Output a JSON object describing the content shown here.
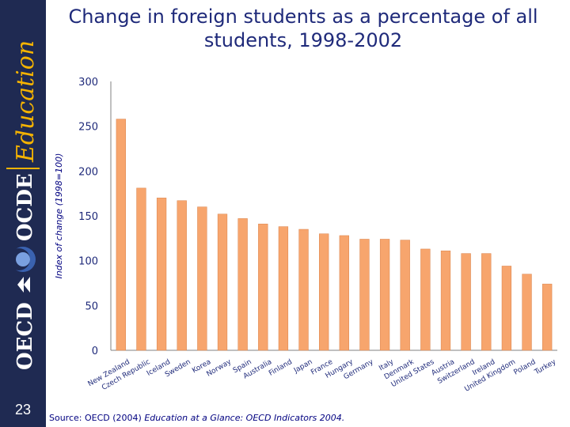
{
  "sidebar": {
    "brand_lines": [
      "OECD",
      "OCDE"
    ],
    "brand_word": "Education",
    "page_number": "23",
    "colors": {
      "background": "#1f2a52",
      "accent": "#f5b301",
      "logo_blue": "#3a62b0"
    }
  },
  "footer": {
    "source_prefix": "Source: OECD (2004)",
    "source_publication": "Education at a Glance: OECD Indicators 2004."
  },
  "chart_data": {
    "type": "bar",
    "title": "Change in foreign students as a percentage of all students, 1998-2002",
    "xlabel": "",
    "ylabel": "Index of change (1998=100)",
    "ylim": [
      0,
      300
    ],
    "yticks": [
      0,
      50,
      100,
      150,
      200,
      250,
      300
    ],
    "grid": false,
    "legend": "none",
    "bar_color": "#f7a56d",
    "categories": [
      "New Zealand",
      "Czech Republic",
      "Iceland",
      "Sweden",
      "Korea",
      "Norway",
      "Spain",
      "Australia",
      "Finland",
      "Japan",
      "France",
      "Hungary",
      "Germany",
      "Italy",
      "Denmark",
      "United States",
      "Austria",
      "Switzerland",
      "Ireland",
      "United Kingdom",
      "Poland",
      "Turkey"
    ],
    "values": [
      258,
      181,
      170,
      167,
      160,
      152,
      147,
      141,
      138,
      135,
      130,
      128,
      124,
      124,
      123,
      113,
      111,
      108,
      108,
      94,
      85,
      74
    ]
  }
}
